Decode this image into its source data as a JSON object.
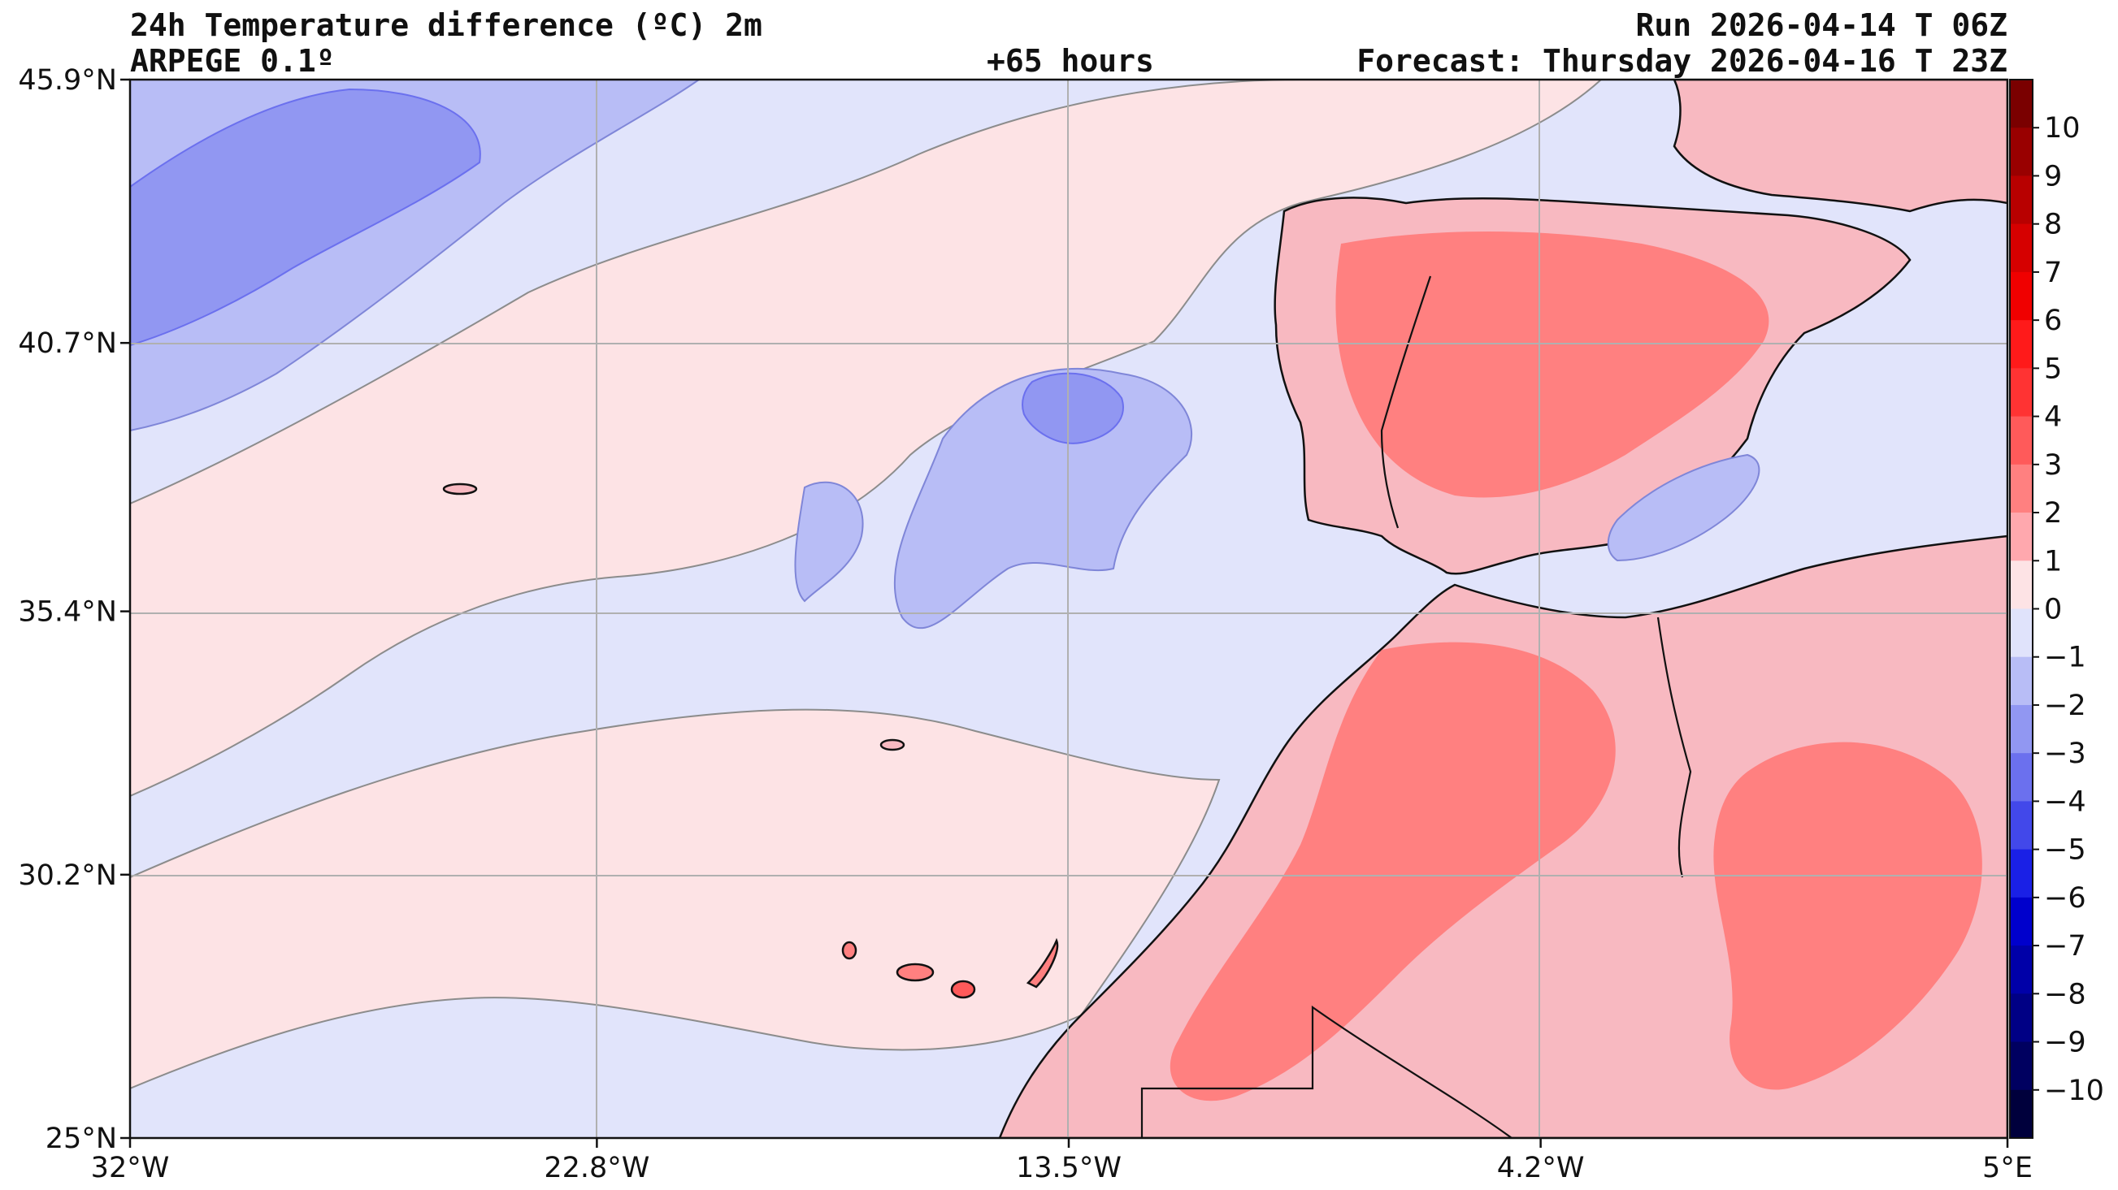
{
  "header": {
    "title": "24h Temperature difference (ºC) 2m",
    "model": "ARPEGE 0.1º",
    "lead_time": "+65 hours",
    "run": "Run 2026-04-14 T 06Z",
    "forecast": "Forecast: Thursday 2026-04-16 T 23Z"
  },
  "map": {
    "lat_range": [
      25.0,
      45.9
    ],
    "lon_range": [
      -32.0,
      5.0
    ],
    "lat_ticks": [
      {
        "value": 45.9,
        "label": "45.9°N"
      },
      {
        "value": 40.7,
        "label": "40.7°N"
      },
      {
        "value": 35.4,
        "label": "35.4°N"
      },
      {
        "value": 30.2,
        "label": "30.2°N"
      },
      {
        "value": 25.0,
        "label": "25°N"
      }
    ],
    "lon_ticks": [
      {
        "value": -32.0,
        "label": "32°W"
      },
      {
        "value": -22.8,
        "label": "22.8°W"
      },
      {
        "value": -13.5,
        "label": "13.5°W"
      },
      {
        "value": -4.2,
        "label": "4.2°W"
      },
      {
        "value": 5.0,
        "label": "5°E"
      }
    ],
    "grid": true,
    "sea_color": "#e1e4fb",
    "land_color": "#f8b9c1"
  },
  "colorbar": {
    "labels": [
      "10",
      "9",
      "8",
      "7",
      "6",
      "5",
      "4",
      "3",
      "2",
      "1",
      "0",
      "−1",
      "−2",
      "−3",
      "−4",
      "−5",
      "−6",
      "−7",
      "−8",
      "−9",
      "−10"
    ],
    "colors_top_to_bottom": [
      "#7a0000",
      "#990000",
      "#b80000",
      "#d60000",
      "#f00000",
      "#ff1a1a",
      "#ff3333",
      "#ff5a5a",
      "#ff8080",
      "#ffa8ae",
      "#fde3e5",
      "#e0e3fb",
      "#b8bdf6",
      "#9197f2",
      "#6b70ee",
      "#4248ea",
      "#1a20e6",
      "#0000cc",
      "#0000a8",
      "#000085",
      "#000060",
      "#00003c"
    ]
  }
}
